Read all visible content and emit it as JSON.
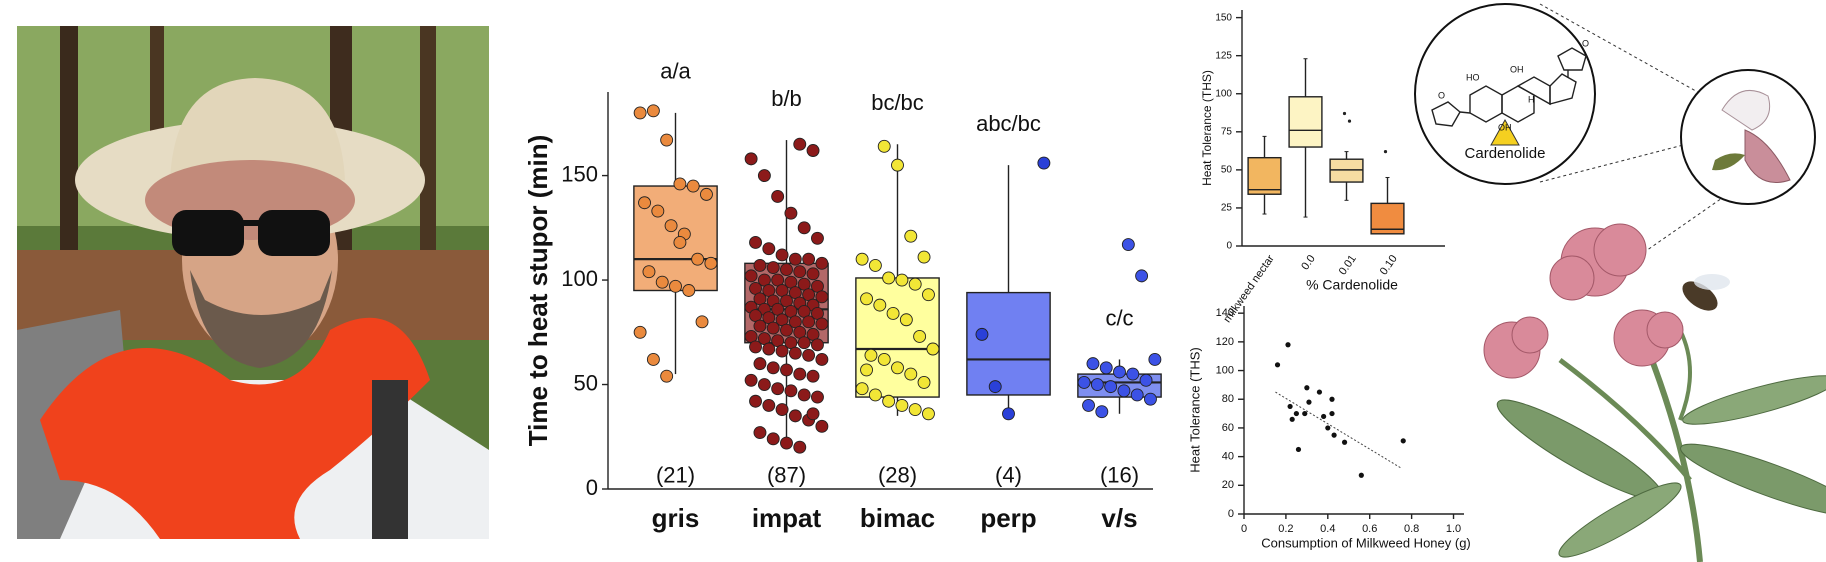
{
  "chart_data": [
    {
      "type": "box",
      "ylabel": "Time to heat stupor (min)",
      "categories": [
        "gris",
        "impat",
        "bimac",
        "perp",
        "v/s"
      ],
      "boxes": [
        {
          "whislo": 55,
          "q1": 95,
          "med": 110,
          "q3": 145,
          "whishi": 180
        },
        {
          "whislo": 20,
          "q1": 70,
          "med": 86,
          "q3": 108,
          "whishi": 167
        },
        {
          "whislo": 35,
          "q1": 44,
          "med": 67,
          "q3": 101,
          "whishi": 165
        },
        {
          "whislo": 35,
          "q1": 45,
          "med": 62,
          "q3": 94,
          "whishi": 155
        },
        {
          "whislo": 36,
          "q1": 44,
          "med": 51,
          "q3": 55,
          "whishi": 62
        }
      ],
      "points": [
        [
          180,
          181,
          167,
          146,
          145,
          141,
          137,
          133,
          126,
          122,
          110,
          108,
          104,
          99,
          97,
          95,
          80,
          75,
          62,
          54,
          118
        ],
        [
          165,
          162,
          158,
          150,
          140,
          132,
          125,
          120,
          118,
          115,
          112,
          110,
          110,
          108,
          107,
          106,
          105,
          104,
          103,
          102,
          100,
          100,
          99,
          98,
          97,
          96,
          95,
          95,
          94,
          93,
          92,
          91,
          90,
          90,
          89,
          88,
          87,
          86,
          86,
          85,
          85,
          84,
          83,
          82,
          81,
          80,
          80,
          79,
          78,
          77,
          76,
          75,
          74,
          73,
          72,
          71,
          70,
          70,
          69,
          68,
          67,
          66,
          65,
          64,
          62,
          60,
          58,
          57,
          55,
          54,
          52,
          50,
          48,
          47,
          45,
          44,
          42,
          40,
          38,
          35,
          33,
          30,
          27,
          24,
          22,
          20,
          36
        ],
        [
          164,
          155,
          121,
          111,
          110,
          107,
          101,
          100,
          98,
          93,
          91,
          88,
          84,
          81,
          73,
          67,
          64,
          62,
          58,
          55,
          51,
          48,
          45,
          42,
          40,
          38,
          36,
          57
        ],
        [
          156,
          74,
          49,
          36
        ],
        [
          117,
          102,
          62,
          60,
          58,
          56,
          55,
          52,
          51,
          50,
          49,
          47,
          45,
          43,
          40,
          37
        ]
      ],
      "box_colors": [
        "#f2ad78",
        "#b36868",
        "#ffff9e",
        "#7080f2",
        "#7f8ff0"
      ],
      "point_colors": [
        "#ea8a3e",
        "#8c1a1a",
        "#f2e636",
        "#2a40d8",
        "#3c52e6"
      ],
      "group_letters": [
        "a/a",
        "b/b",
        "bc/bc",
        "abc/bc",
        "c/c"
      ],
      "count_labels": [
        "(21)",
        "(87)",
        "(28)",
        "(4)",
        "(16)"
      ],
      "ylim": [
        0,
        190
      ],
      "yticks": [
        0,
        50,
        100,
        150
      ]
    },
    {
      "type": "box",
      "ylabel": "Heat Tolerance (THS)",
      "xlabel": "% Cardenolide",
      "categories": [
        "milkweed nectar",
        "0.0",
        "0.01",
        "0.10"
      ],
      "boxes": [
        {
          "whislo": 21,
          "q1": 34,
          "med": 37,
          "q3": 58,
          "whishi": 72
        },
        {
          "whislo": 19,
          "q1": 65,
          "med": 76,
          "q3": 98,
          "whishi": 123
        },
        {
          "whislo": 30,
          "q1": 42,
          "med": 50,
          "q3": 57,
          "whishi": 62
        },
        {
          "whislo": 8,
          "q1": 8,
          "med": 11,
          "q3": 28,
          "whishi": 45
        }
      ],
      "fliers": [
        [],
        [],
        [
          87,
          82
        ],
        [
          62
        ]
      ],
      "box_colors": [
        "#f2b660",
        "#fdf4c4",
        "#f6dca2",
        "#f08c40"
      ],
      "ylim": [
        0,
        155
      ],
      "yticks": [
        0,
        25,
        50,
        75,
        100,
        125,
        150
      ]
    },
    {
      "type": "scatter",
      "xlabel": "Consumption of Milkweed Honey (g)",
      "ylabel": "Heat Tolerance (THS)",
      "x": [
        0.16,
        0.21,
        0.22,
        0.23,
        0.25,
        0.26,
        0.29,
        0.3,
        0.31,
        0.36,
        0.38,
        0.4,
        0.42,
        0.43,
        0.42,
        0.48,
        0.56,
        0.76
      ],
      "y": [
        104,
        118,
        75,
        66,
        70,
        45,
        70,
        88,
        78,
        85,
        68,
        60,
        80,
        55,
        70,
        50,
        27,
        51
      ],
      "color": "#111111",
      "trendline": {
        "x": [
          0.15,
          0.75
        ],
        "y": [
          85,
          32
        ]
      },
      "xlim": [
        0,
        1.05
      ],
      "ylim": [
        0,
        145
      ],
      "xticks": [
        0,
        0.2,
        0.4,
        0.6,
        0.8,
        {
          "value": 1,
          "label": "1.0"
        }
      ],
      "yticks": [
        0,
        20,
        40,
        60,
        80,
        100,
        120,
        140
      ]
    }
  ],
  "illustration": {
    "label": "Cardenolide",
    "molecule_labels": [
      "HO",
      "OH",
      "OH",
      "H",
      "O",
      "O"
    ]
  }
}
